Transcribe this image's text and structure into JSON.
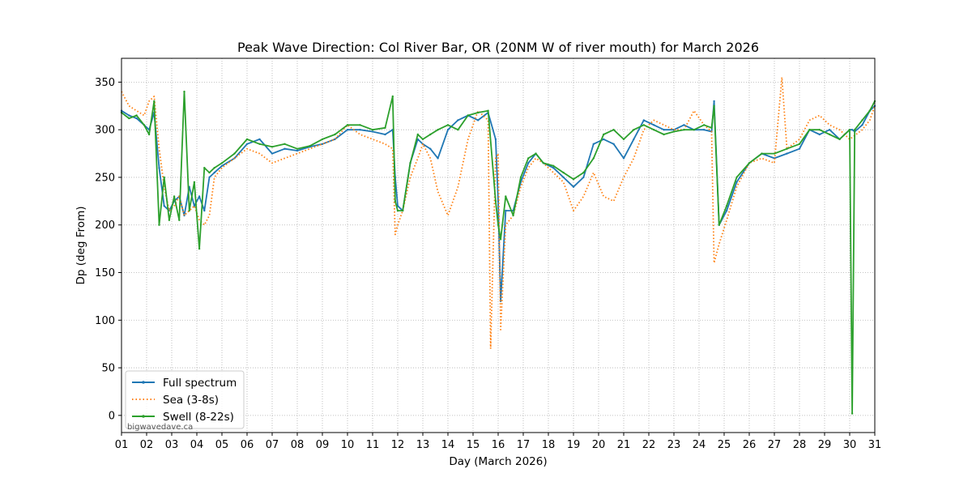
{
  "chart_data": {
    "type": "line",
    "title": "Peak Wave Direction: Col River Bar, OR (20NM W of river mouth) for March 2026",
    "xlabel": "Day (March 2026)",
    "ylabel": "Dp (deg From)",
    "xlim": [
      1,
      31
    ],
    "ylim": [
      -18,
      375
    ],
    "grid": true,
    "legend_position": "lower-left",
    "watermark": "bigwavedave.ca",
    "x_ticks": [
      1,
      2,
      3,
      4,
      5,
      6,
      7,
      8,
      9,
      10,
      11,
      12,
      13,
      14,
      15,
      16,
      17,
      18,
      19,
      20,
      21,
      22,
      23,
      24,
      25,
      26,
      27,
      28,
      29,
      30,
      31
    ],
    "x_tick_labels": [
      "01",
      "02",
      "03",
      "04",
      "05",
      "06",
      "07",
      "08",
      "09",
      "10",
      "11",
      "12",
      "13",
      "14",
      "15",
      "16",
      "17",
      "18",
      "19",
      "20",
      "21",
      "22",
      "23",
      "24",
      "25",
      "26",
      "27",
      "28",
      "29",
      "30",
      "31"
    ],
    "y_ticks": [
      0,
      50,
      100,
      150,
      200,
      250,
      300,
      350
    ],
    "y_tick_labels": [
      "0",
      "50",
      "100",
      "150",
      "200",
      "250",
      "300",
      "350"
    ],
    "series": [
      {
        "name": "Full spectrum",
        "color": "#1f77b4",
        "style": "solid-dots",
        "x": [
          1.0,
          1.3,
          1.6,
          1.9,
          2.1,
          2.3,
          2.5,
          2.7,
          2.9,
          3.1,
          3.3,
          3.5,
          3.7,
          3.9,
          4.1,
          4.3,
          4.5,
          4.7,
          5.0,
          5.5,
          6.0,
          6.5,
          7.0,
          7.5,
          8.0,
          8.5,
          9.0,
          9.5,
          10.0,
          10.5,
          11.0,
          11.5,
          11.8,
          11.9,
          12.0,
          12.2,
          12.5,
          12.8,
          13.0,
          13.3,
          13.6,
          14.0,
          14.4,
          14.8,
          15.2,
          15.6,
          15.9,
          16.0,
          16.1,
          16.3,
          16.6,
          16.9,
          17.2,
          17.5,
          17.8,
          18.2,
          18.6,
          19.0,
          19.4,
          19.8,
          20.2,
          20.6,
          21.0,
          21.4,
          21.8,
          22.2,
          22.6,
          23.0,
          23.4,
          23.8,
          24.2,
          24.5,
          24.6,
          24.8,
          25.1,
          25.5,
          26.0,
          26.5,
          27.0,
          27.5,
          28.0,
          28.4,
          28.8,
          29.2,
          29.6,
          30.0,
          30.1,
          30.2,
          30.5,
          30.8,
          31.0
        ],
        "y": [
          320,
          315,
          312,
          305,
          300,
          318,
          260,
          220,
          215,
          225,
          230,
          210,
          240,
          220,
          230,
          215,
          250,
          255,
          262,
          270,
          285,
          290,
          275,
          280,
          278,
          282,
          285,
          290,
          300,
          300,
          298,
          295,
          300,
          250,
          220,
          215,
          265,
          290,
          285,
          280,
          270,
          300,
          310,
          315,
          310,
          318,
          290,
          225,
          120,
          215,
          215,
          245,
          265,
          275,
          265,
          260,
          250,
          240,
          250,
          285,
          290,
          285,
          270,
          290,
          310,
          305,
          300,
          300,
          305,
          300,
          300,
          298,
          330,
          200,
          215,
          245,
          265,
          275,
          270,
          275,
          280,
          300,
          295,
          300,
          290,
          300,
          300,
          298,
          305,
          320,
          325
        ]
      },
      {
        "name": "Sea (3-8s)",
        "color": "#ff7f0e",
        "style": "dotted",
        "x": [
          1.0,
          1.3,
          1.6,
          1.9,
          2.1,
          2.3,
          2.5,
          2.7,
          2.9,
          3.1,
          3.3,
          3.5,
          3.7,
          3.9,
          4.1,
          4.3,
          4.5,
          4.7,
          5.0,
          5.5,
          6.0,
          6.5,
          7.0,
          7.5,
          8.0,
          8.5,
          9.0,
          9.5,
          10.0,
          10.5,
          11.0,
          11.5,
          11.8,
          11.9,
          12.0,
          12.2,
          12.5,
          12.8,
          13.0,
          13.3,
          13.6,
          14.0,
          14.4,
          14.8,
          15.2,
          15.6,
          15.7,
          15.9,
          16.0,
          16.1,
          16.3,
          16.6,
          16.9,
          17.2,
          17.5,
          17.8,
          18.2,
          18.6,
          19.0,
          19.4,
          19.8,
          20.2,
          20.6,
          21.0,
          21.4,
          21.8,
          22.2,
          22.6,
          23.0,
          23.4,
          23.8,
          24.2,
          24.5,
          24.6,
          24.8,
          25.1,
          25.5,
          26.0,
          26.5,
          27.0,
          27.3,
          27.5,
          28.0,
          28.4,
          28.8,
          29.2,
          29.6,
          30.0,
          30.5,
          30.8,
          31.0
        ],
        "y": [
          340,
          325,
          320,
          315,
          330,
          335,
          280,
          240,
          215,
          220,
          230,
          210,
          215,
          220,
          205,
          200,
          210,
          250,
          260,
          270,
          280,
          275,
          265,
          270,
          275,
          280,
          285,
          290,
          305,
          295,
          290,
          285,
          280,
          190,
          200,
          215,
          250,
          270,
          285,
          270,
          235,
          210,
          240,
          290,
          320,
          310,
          70,
          270,
          275,
          90,
          200,
          210,
          240,
          260,
          270,
          265,
          255,
          245,
          215,
          230,
          255,
          230,
          225,
          250,
          270,
          300,
          310,
          305,
          300,
          300,
          320,
          305,
          298,
          160,
          180,
          205,
          240,
          265,
          270,
          265,
          355,
          280,
          290,
          310,
          315,
          305,
          300,
          290,
          300,
          310,
          325
        ]
      },
      {
        "name": "Swell (8-22s)",
        "color": "#2ca02c",
        "style": "solid-dots",
        "x": [
          1.0,
          1.3,
          1.6,
          1.9,
          2.1,
          2.3,
          2.5,
          2.7,
          2.9,
          3.1,
          3.3,
          3.5,
          3.7,
          3.9,
          4.1,
          4.3,
          4.5,
          4.7,
          5.0,
          5.5,
          6.0,
          6.5,
          7.0,
          7.5,
          8.0,
          8.5,
          9.0,
          9.5,
          10.0,
          10.5,
          11.0,
          11.5,
          11.8,
          11.9,
          12.0,
          12.2,
          12.5,
          12.8,
          13.0,
          13.3,
          13.6,
          14.0,
          14.4,
          14.8,
          15.2,
          15.6,
          15.9,
          16.0,
          16.1,
          16.3,
          16.6,
          16.9,
          17.2,
          17.5,
          17.8,
          18.2,
          18.6,
          19.0,
          19.4,
          19.8,
          20.2,
          20.6,
          21.0,
          21.4,
          21.8,
          22.2,
          22.6,
          23.0,
          23.4,
          23.8,
          24.2,
          24.5,
          24.6,
          24.8,
          25.1,
          25.5,
          26.0,
          26.5,
          27.0,
          27.5,
          28.0,
          28.4,
          28.8,
          29.2,
          29.6,
          30.0,
          30.1,
          30.2,
          30.5,
          30.8,
          31.0
        ],
        "y": [
          318,
          312,
          315,
          305,
          295,
          330,
          200,
          250,
          205,
          230,
          205,
          340,
          215,
          245,
          175,
          260,
          255,
          260,
          265,
          275,
          290,
          285,
          282,
          285,
          280,
          283,
          290,
          295,
          305,
          305,
          300,
          302,
          335,
          225,
          215,
          215,
          265,
          295,
          290,
          295,
          300,
          305,
          300,
          315,
          318,
          320,
          225,
          200,
          185,
          230,
          210,
          250,
          270,
          275,
          265,
          262,
          255,
          248,
          255,
          270,
          295,
          300,
          290,
          300,
          305,
          300,
          295,
          298,
          300,
          300,
          305,
          302,
          325,
          200,
          220,
          250,
          265,
          275,
          275,
          280,
          285,
          300,
          300,
          295,
          290,
          300,
          2,
          300,
          310,
          320,
          330
        ]
      }
    ]
  }
}
